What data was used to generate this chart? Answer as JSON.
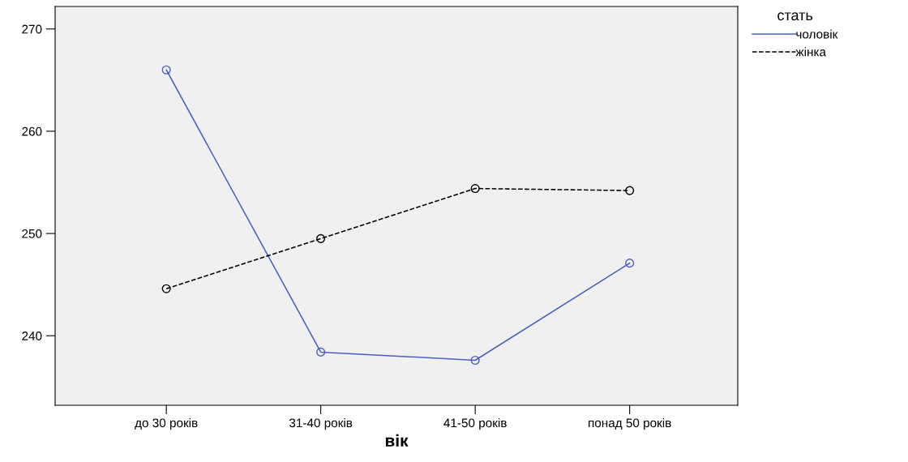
{
  "chart_data": {
    "type": "line",
    "xlabel": "вік",
    "legend_title": "стать",
    "legend": "top right",
    "marker": "circle",
    "grid": false,
    "categories": [
      "до 30 років",
      "31-40 років",
      "41-50 років",
      "понад 50 років"
    ],
    "ylim": [
      233.2,
      272.2
    ],
    "yticks": [
      240,
      250,
      260,
      270
    ],
    "series": [
      {
        "name": "чоловік",
        "color": "#4a5fbf",
        "line_style": "solid",
        "values": [
          266.0,
          238.4,
          237.6,
          247.1
        ]
      },
      {
        "name": "жінка",
        "color": "#000000",
        "line_style": "dashed",
        "values": [
          244.6,
          249.5,
          254.4,
          254.2
        ]
      }
    ]
  }
}
